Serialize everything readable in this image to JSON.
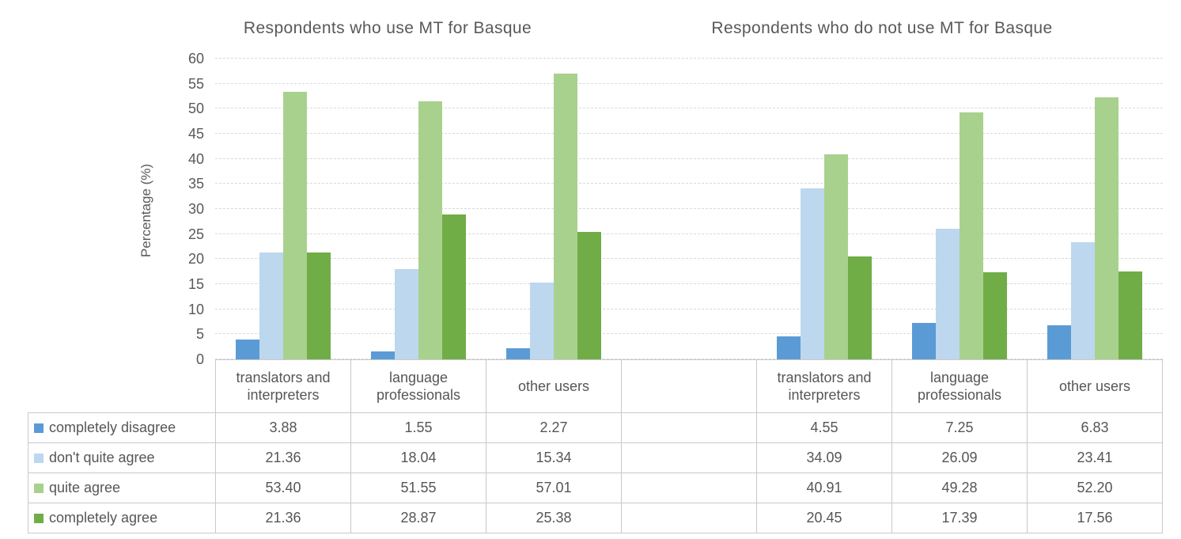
{
  "chart_data": {
    "type": "bar",
    "panels": [
      {
        "title": "Respondents who use MT for Basque",
        "categories": [
          "translators and interpreters",
          "language professionals",
          "other users"
        ]
      },
      {
        "title": "Respondents who do not use MT for Basque",
        "categories": [
          "translators and interpreters",
          "language professionals",
          "other users"
        ]
      }
    ],
    "series": [
      {
        "name": "completely disagree",
        "color": "#5B9BD5",
        "values": [
          [
            3.88,
            1.55,
            2.27
          ],
          [
            4.55,
            7.25,
            6.83
          ]
        ]
      },
      {
        "name": "don't quite agree",
        "color": "#BDD7EE",
        "values": [
          [
            21.36,
            18.04,
            15.34
          ],
          [
            34.09,
            26.09,
            23.41
          ]
        ]
      },
      {
        "name": "quite agree",
        "color": "#A9D18E",
        "values": [
          [
            53.4,
            51.55,
            57.01
          ],
          [
            40.91,
            49.28,
            52.2
          ]
        ]
      },
      {
        "name": "completely agree",
        "color": "#70AD47",
        "values": [
          [
            21.36,
            28.87,
            25.38
          ],
          [
            20.45,
            17.39,
            17.56
          ]
        ]
      }
    ],
    "ylabel": "Percentage (%)",
    "ylim": [
      0,
      60
    ],
    "yticks": [
      "0",
      "5",
      "10",
      "15",
      "20",
      "25",
      "30",
      "35",
      "40",
      "45",
      "50",
      "55",
      "60"
    ],
    "grid": true,
    "grid_color": "#D9D9D9",
    "legend_position": "table-left"
  },
  "data_table": {
    "column_headers": [
      "translators and interpreters",
      "language professionals",
      "other users",
      "",
      "translators and interpreters",
      "language professionals",
      "other users"
    ],
    "rows": [
      {
        "label": "completely disagree",
        "swatch_color": "#5B9BD5",
        "cells": [
          "3.88",
          "1.55",
          "2.27",
          "",
          "4.55",
          "7.25",
          "6.83"
        ]
      },
      {
        "label": "don't quite agree",
        "swatch_color": "#BDD7EE",
        "cells": [
          "21.36",
          "18.04",
          "15.34",
          "",
          "34.09",
          "26.09",
          "23.41"
        ]
      },
      {
        "label": "quite agree",
        "swatch_color": "#A9D18E",
        "cells": [
          "53.40",
          "51.55",
          "57.01",
          "",
          "40.91",
          "49.28",
          "52.20"
        ]
      },
      {
        "label": "completely agree",
        "swatch_color": "#70AD47",
        "cells": [
          "21.36",
          "28.87",
          "25.38",
          "",
          "20.45",
          "17.39",
          "17.56"
        ]
      }
    ]
  }
}
